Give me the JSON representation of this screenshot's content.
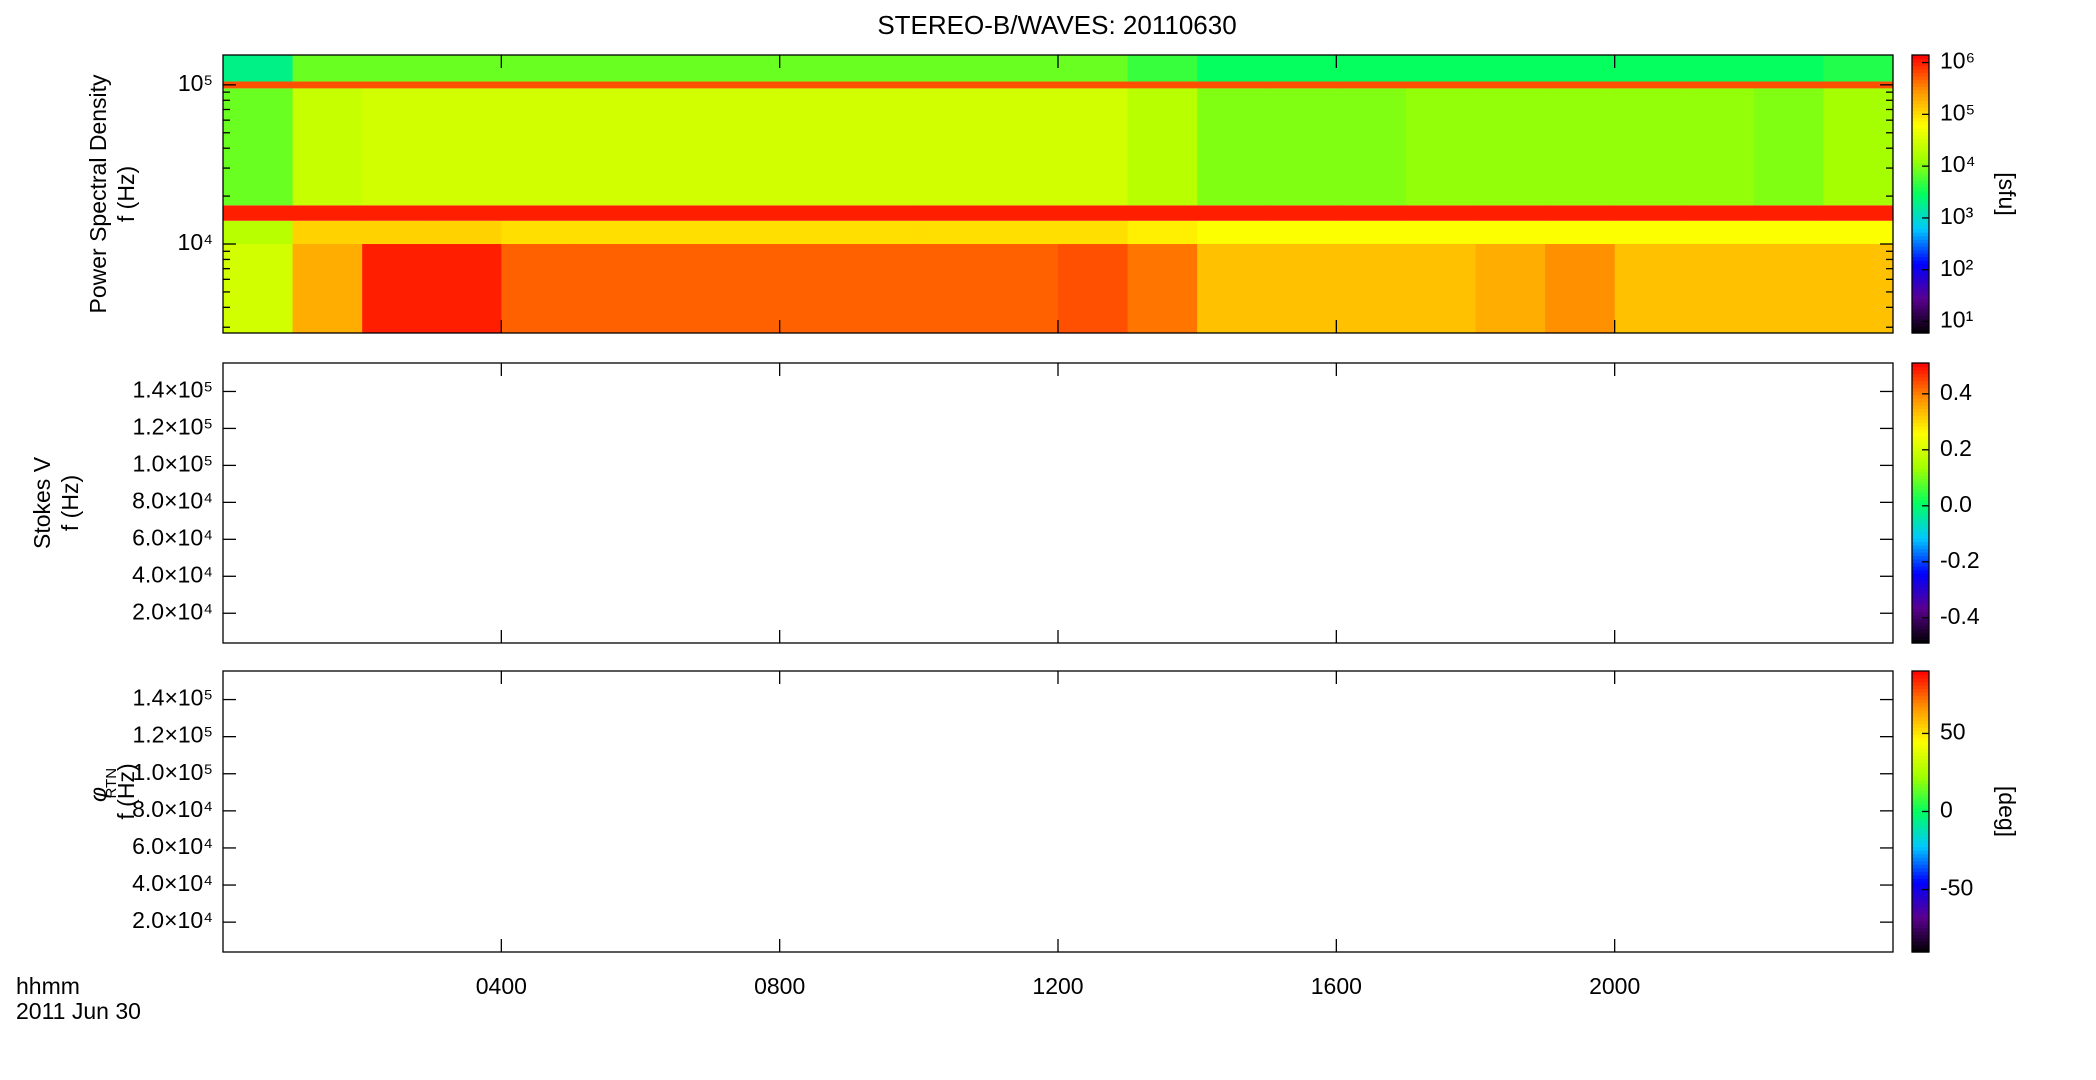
{
  "chart_data": [
    {
      "type": "heatmap",
      "title": "STEREO-B/WAVES: 20110630",
      "ylabel": "Power Spectral Density",
      "yunit": "f (Hz)",
      "zlabel": "[sfu]",
      "yscale": "log",
      "zscale": "log",
      "ylim": [
        2760,
        154000
      ],
      "yticks": [
        {
          "value": 10000,
          "label": "10⁴"
        },
        {
          "value": 100000,
          "label": "10⁵"
        }
      ],
      "yminorticks": [
        3000,
        4000,
        5000,
        6000,
        7000,
        8000,
        9000,
        20000,
        30000,
        40000,
        50000,
        60000,
        70000,
        80000,
        90000
      ],
      "zlim": [
        6,
        1400000
      ],
      "zticks": [
        {
          "value": 10,
          "label": "10¹"
        },
        {
          "value": 100,
          "label": "10²"
        },
        {
          "value": 1000,
          "label": "10³"
        },
        {
          "value": 10000,
          "label": "10⁴"
        },
        {
          "value": 100000,
          "label": "10⁵"
        },
        {
          "value": 1000000,
          "label": "10⁶"
        }
      ],
      "colormap": [
        "#000000",
        "#5a0090",
        "#0000ff",
        "#00c8ff",
        "#00ff60",
        "#a0ff00",
        "#ffff00",
        "#ff9000",
        "#ff0000"
      ],
      "x_edges": [
        0,
        1,
        2,
        3,
        4,
        5,
        6,
        7,
        8,
        9,
        10,
        11,
        12,
        13,
        14,
        15,
        16,
        17,
        18,
        19,
        20,
        21,
        22,
        23,
        24
      ],
      "y_edges": [
        2760,
        10000,
        14000,
        17500,
        95000,
        105000,
        154000
      ],
      "z": [
        [
          30000,
          200000,
          1000000,
          1000000,
          500000,
          500000,
          500000,
          500000,
          500000,
          500000,
          500000,
          500000,
          600000,
          400000,
          150000,
          150000,
          150000,
          150000,
          200000,
          300000,
          150000,
          150000,
          150000,
          150000
        ],
        [
          20000,
          120000,
          120000,
          120000,
          100000,
          100000,
          100000,
          100000,
          100000,
          100000,
          100000,
          100000,
          100000,
          80000,
          60000,
          60000,
          60000,
          60000,
          60000,
          60000,
          60000,
          60000,
          60000,
          60000
        ],
        [
          1000000,
          1000000,
          1000000,
          1000000,
          1000000,
          1000000,
          1000000,
          1000000,
          1000000,
          1000000,
          1000000,
          1000000,
          1000000,
          1000000,
          1000000,
          1000000,
          1000000,
          1000000,
          1000000,
          1000000,
          1000000,
          1000000,
          1000000,
          1000000
        ],
        [
          8000,
          25000,
          30000,
          30000,
          30000,
          30000,
          30000,
          30000,
          30000,
          30000,
          30000,
          30000,
          30000,
          20000,
          10000,
          10000,
          10000,
          12000,
          12000,
          12000,
          12000,
          12000,
          10000,
          15000
        ],
        [
          600000,
          600000,
          600000,
          600000,
          600000,
          600000,
          600000,
          600000,
          600000,
          600000,
          600000,
          600000,
          600000,
          600000,
          600000,
          600000,
          600000,
          600000,
          600000,
          600000,
          600000,
          600000,
          600000,
          600000
        ],
        [
          2000,
          8000,
          8000,
          8000,
          8000,
          8000,
          8000,
          8000,
          8000,
          8000,
          8000,
          8000,
          8000,
          5000,
          3000,
          3000,
          3000,
          3000,
          3000,
          3000,
          3000,
          3000,
          3000,
          4000
        ]
      ]
    },
    {
      "type": "heatmap",
      "ylabel": "Stokes V",
      "yunit": "f (Hz)",
      "ylim": [
        3900,
        155400
      ],
      "yticks": [
        {
          "value": 20000,
          "label": "2.0×10⁴"
        },
        {
          "value": 40000,
          "label": "4.0×10⁴"
        },
        {
          "value": 60000,
          "label": "6.0×10⁴"
        },
        {
          "value": 80000,
          "label": "8.0×10⁴"
        },
        {
          "value": 100000,
          "label": "1.0×10⁵"
        },
        {
          "value": 120000,
          "label": "1.2×10⁵"
        },
        {
          "value": 140000,
          "label": "1.4×10⁵"
        }
      ],
      "zlim": [
        -0.49,
        0.51
      ],
      "zticks": [
        -0.4,
        -0.2,
        {
          "value": 0,
          "label": "0.0"
        },
        0.2,
        0.4
      ]
    },
    {
      "type": "heatmap",
      "ylabel": "φ",
      "ylabel_sub": "RTN",
      "yunit": "f (Hz)",
      "zlabel": "[deg]",
      "ylim": [
        3900,
        155400
      ],
      "yticks": [
        {
          "value": 20000,
          "label": "2.0×10⁴"
        },
        {
          "value": 40000,
          "label": "4.0×10⁴"
        },
        {
          "value": 60000,
          "label": "6.0×10⁴"
        },
        {
          "value": 80000,
          "label": "8.0×10⁴"
        },
        {
          "value": 100000,
          "label": "1.0×10⁵"
        },
        {
          "value": 120000,
          "label": "1.2×10⁵"
        },
        {
          "value": 140000,
          "label": "1.4×10⁵"
        }
      ],
      "zlim": [
        -90,
        90
      ],
      "zticks": [
        -50,
        0,
        50
      ],
      "xlim": [
        0,
        24
      ],
      "xticks": [
        {
          "value": 4,
          "label": "0400"
        },
        {
          "value": 8,
          "label": "0800"
        },
        {
          "value": 12,
          "label": "1200"
        },
        {
          "value": 16,
          "label": "1600"
        },
        {
          "value": 20,
          "label": "2000"
        }
      ],
      "xlabel": "hhmm",
      "xdate": "2011 Jun 30"
    }
  ]
}
